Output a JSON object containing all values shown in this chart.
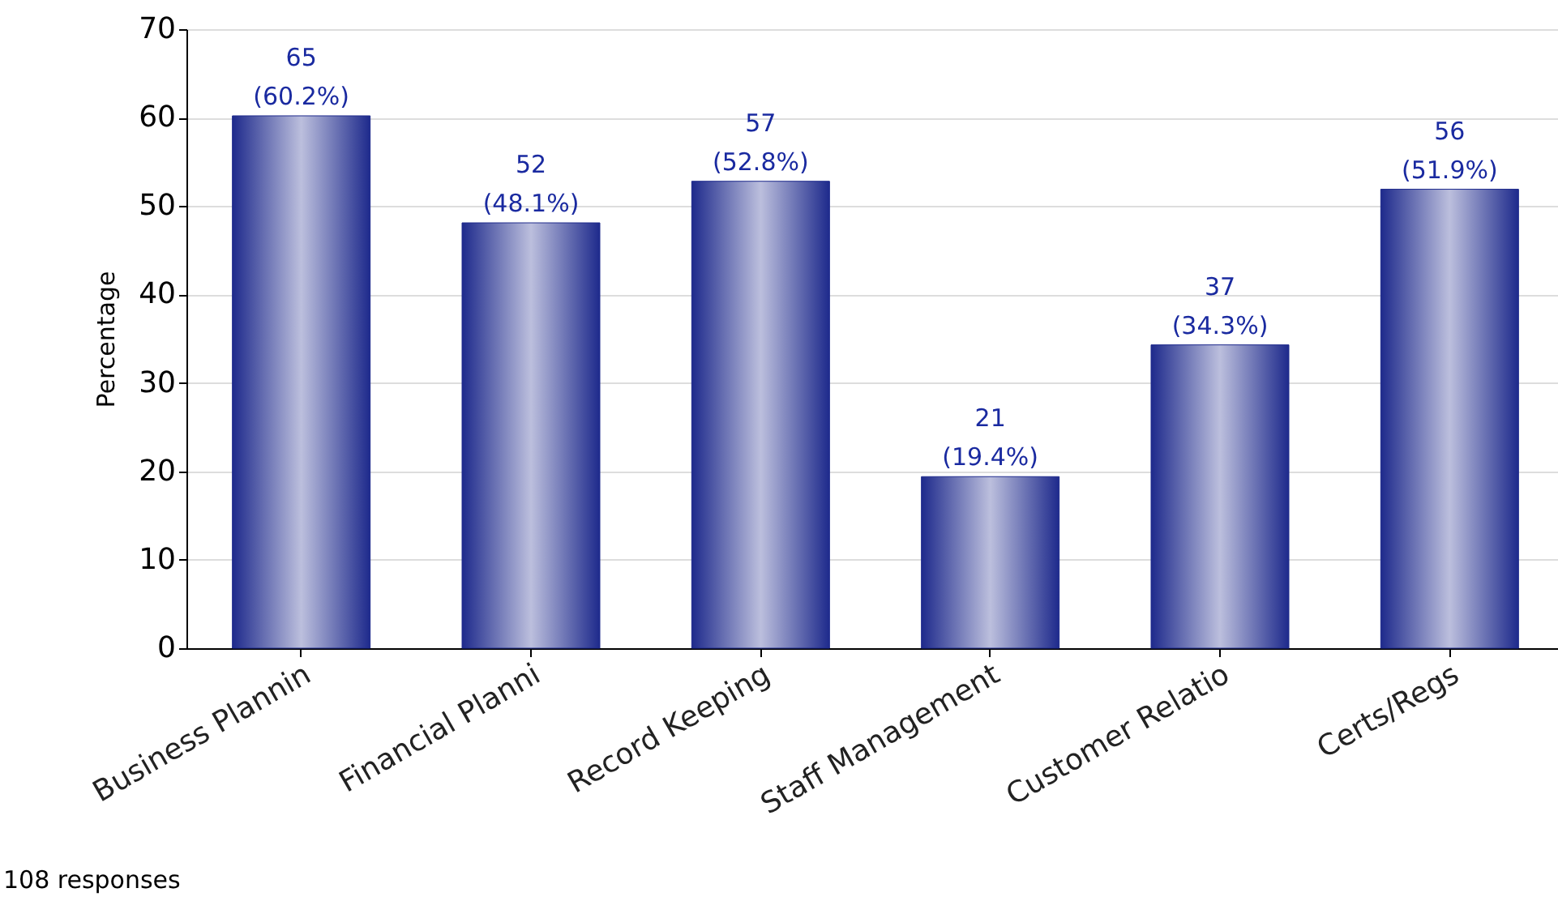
{
  "chart_data": {
    "type": "bar",
    "ylabel": "Percentage",
    "categories": [
      "Business Plannin",
      "Financial Planni",
      "Record Keeping",
      "Staff Management",
      "Customer Relatio",
      "Certs/Regs"
    ],
    "values": [
      60.2,
      48.1,
      52.8,
      19.4,
      34.3,
      51.9
    ],
    "value_labels": [
      "65 (60.2%)",
      "52 (48.1%)",
      "57 (52.8%)",
      "21 (19.4%)",
      "37 (34.3%)",
      "56 (51.9%)"
    ],
    "color": "#1e2a8c",
    "ylim": [
      0,
      70
    ],
    "yticks": [
      0,
      10,
      20,
      30,
      40,
      50,
      60,
      70
    ],
    "grid": "y",
    "annotations": [
      "108 responses"
    ]
  }
}
